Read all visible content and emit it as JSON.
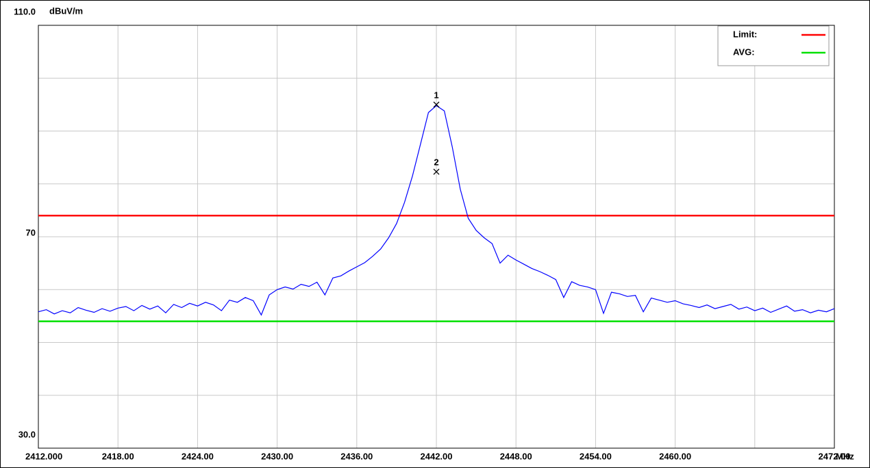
{
  "chart_data": {
    "type": "line",
    "y_unit": "dBuV/m",
    "x_unit": "MHz",
    "xlim": [
      2412,
      2472
    ],
    "ylim": [
      30,
      110
    ],
    "xticks": [
      {
        "value": 2412,
        "label": "2412.000"
      },
      {
        "value": 2418,
        "label": "2418.00"
      },
      {
        "value": 2424,
        "label": "2424.00"
      },
      {
        "value": 2430,
        "label": "2430.00"
      },
      {
        "value": 2436,
        "label": "2436.00"
      },
      {
        "value": 2442,
        "label": "2442.00"
      },
      {
        "value": 2448,
        "label": "2448.00"
      },
      {
        "value": 2454,
        "label": "2454.00"
      },
      {
        "value": 2460,
        "label": "2460.00"
      },
      {
        "value": 2466,
        "label": null
      },
      {
        "value": 2472,
        "label": "2472.00"
      }
    ],
    "yticks": [
      {
        "value": 30,
        "label": "30.0"
      },
      {
        "value": 40,
        "label": null
      },
      {
        "value": 50,
        "label": null
      },
      {
        "value": 60,
        "label": null
      },
      70,
      {
        "value": 80,
        "label": null
      },
      {
        "value": 90,
        "label": null
      },
      {
        "value": 100,
        "label": null
      },
      {
        "value": 110,
        "label": "110.0"
      }
    ],
    "grid": true,
    "legend": "top-right",
    "limit_lines": [
      {
        "name": "Limit:",
        "color": "#ff0000",
        "value": 74
      },
      {
        "name": "AVG:",
        "color": "#00e000",
        "value": 54
      }
    ],
    "markers": [
      {
        "label": "1",
        "x": 2442,
        "value": 95
      },
      {
        "label": "2",
        "x": 2442,
        "value": 82.3
      }
    ],
    "x": [
      2412.0,
      2412.6,
      2413.2,
      2413.8,
      2414.4,
      2415.0,
      2415.6,
      2416.2,
      2416.8,
      2417.4,
      2418.0,
      2418.6,
      2419.2,
      2419.8,
      2420.4,
      2421.0,
      2421.6,
      2422.2,
      2422.8,
      2423.4,
      2424.0,
      2424.6,
      2425.2,
      2425.8,
      2426.4,
      2427.0,
      2427.6,
      2428.2,
      2428.8,
      2429.4,
      2430.0,
      2430.6,
      2431.2,
      2431.8,
      2432.4,
      2433.0,
      2433.6,
      2434.2,
      2434.8,
      2435.4,
      2436.0,
      2436.6,
      2437.2,
      2437.8,
      2438.4,
      2439.0,
      2439.6,
      2440.2,
      2440.8,
      2441.4,
      2442.0,
      2442.6,
      2443.2,
      2443.8,
      2444.4,
      2445.0,
      2445.6,
      2446.2,
      2446.8,
      2447.4,
      2448.0,
      2448.6,
      2449.2,
      2449.8,
      2450.4,
      2451.0,
      2451.6,
      2452.2,
      2452.8,
      2453.4,
      2454.0,
      2454.6,
      2455.2,
      2455.8,
      2456.4,
      2457.0,
      2457.6,
      2458.2,
      2458.8,
      2459.4,
      2460.0,
      2460.6,
      2461.2,
      2461.8,
      2462.4,
      2463.0,
      2463.6,
      2464.2,
      2464.8,
      2465.4,
      2466.0,
      2466.6,
      2467.2,
      2467.8,
      2468.4,
      2469.0,
      2469.6,
      2470.2,
      2470.8,
      2471.4,
      2472.0
    ],
    "series": [
      {
        "color": "#0000ff",
        "values": [
          55.8,
          56.2,
          55.4,
          56.0,
          55.6,
          56.6,
          56.1,
          55.7,
          56.4,
          55.9,
          56.5,
          56.8,
          56.0,
          57.0,
          56.3,
          56.9,
          55.6,
          57.2,
          56.6,
          57.4,
          56.9,
          57.6,
          57.1,
          56.0,
          58.0,
          57.6,
          58.5,
          57.9,
          55.2,
          59.0,
          60.0,
          60.5,
          60.1,
          61.0,
          60.6,
          61.4,
          59.0,
          62.2,
          62.6,
          63.5,
          64.3,
          65.1,
          66.3,
          67.7,
          69.8,
          72.5,
          76.5,
          81.5,
          87.5,
          93.5,
          94.8,
          93.8,
          87.0,
          79.0,
          73.5,
          71.2,
          69.8,
          68.7,
          65.0,
          66.5,
          65.6,
          64.8,
          64.0,
          63.4,
          62.7,
          61.9,
          58.5,
          61.5,
          60.8,
          60.5,
          60.0,
          55.5,
          59.5,
          59.2,
          58.7,
          58.9,
          55.8,
          58.4,
          58.0,
          57.6,
          57.9,
          57.3,
          57.0,
          56.6,
          57.1,
          56.4,
          56.8,
          57.2,
          56.3,
          56.7,
          56.0,
          56.5,
          55.7,
          56.3,
          56.9,
          55.9,
          56.2,
          55.6,
          56.1,
          55.8,
          56.4
        ]
      }
    ]
  }
}
